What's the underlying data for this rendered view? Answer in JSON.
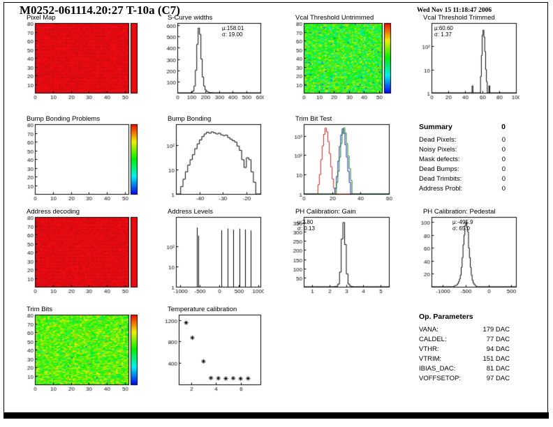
{
  "header": {
    "title": "M0252-061114.20:27 T-10a (C7)",
    "date": "Wed Nov 15 11:18:47 2006"
  },
  "summary": {
    "heading": "Summary",
    "total": "0",
    "items": [
      {
        "label": "Dead Pixels:",
        "value": "0"
      },
      {
        "label": "Noisy Pixels:",
        "value": "0"
      },
      {
        "label": "Mask defects:",
        "value": "0"
      },
      {
        "label": "Dead Bumps:",
        "value": "0"
      },
      {
        "label": "Dead Trimbits:",
        "value": "0"
      },
      {
        "label": "Address Probl:",
        "value": "0"
      }
    ]
  },
  "op_parameters": {
    "heading": "Op. Parameters",
    "items": [
      {
        "label": "VANA:",
        "value": "179 DAC"
      },
      {
        "label": "CALDEL:",
        "value": "77 DAC"
      },
      {
        "label": "VTHR:",
        "value": "94 DAC"
      },
      {
        "label": "VTRIM:",
        "value": "151 DAC"
      },
      {
        "label": "IBIAS_DAC:",
        "value": "81 DAC"
      },
      {
        "label": "VOFFSETOP:",
        "value": "97 DAC"
      }
    ]
  },
  "chart_data": [
    {
      "id": "pixel_map",
      "type": "heatmap",
      "title": "Pixel Map",
      "xlim": [
        0,
        52
      ],
      "xticks": [
        0,
        10,
        20,
        30,
        40,
        50
      ],
      "ylim": [
        0,
        80
      ],
      "yticks": [
        10,
        20,
        30,
        40,
        50,
        60,
        70,
        80
      ],
      "heat": {
        "kind": "red",
        "seed": 3
      },
      "colorbar": "red"
    },
    {
      "id": "scurve_widths",
      "type": "hist",
      "title": "S-Curve widths",
      "xlim": [
        0,
        600
      ],
      "xticks": [
        0,
        100,
        200,
        300,
        400,
        500,
        600
      ],
      "ylim": [
        0,
        620
      ],
      "yticks": [
        100,
        200,
        300,
        400,
        500,
        600
      ],
      "hist": {
        "start": 100,
        "binw": 10,
        "color": "#000000",
        "counts": [
          5,
          15,
          60,
          200,
          430,
          575,
          520,
          300,
          140,
          60,
          25,
          12,
          6,
          3,
          2,
          1
        ]
      },
      "stats": {
        "mu": "μ:158.01",
        "sigma": "σ: 19.00"
      }
    },
    {
      "id": "vcal_untrimmed",
      "type": "heatmap",
      "title": "Vcal Threshold Untrimmed",
      "xlim": [
        0,
        52
      ],
      "xticks": [
        0,
        10,
        20,
        30,
        40,
        50
      ],
      "ylim": [
        0,
        80
      ],
      "yticks": [
        10,
        20,
        30,
        40,
        50,
        60,
        70,
        80
      ],
      "heat": {
        "kind": "noise",
        "seed": 7,
        "mean": 0.52,
        "sd": 0.13,
        "outlier": 0.006,
        "outlier_v": 0.08
      },
      "colorbar": "rainbow"
    },
    {
      "id": "vcal_trimmed",
      "type": "hist",
      "title": "Vcal Threshold Trimmed",
      "ylog": true,
      "xlim": [
        0,
        100
      ],
      "xticks": [
        0,
        20,
        40,
        60,
        80,
        100
      ],
      "ylim": [
        1,
        1000
      ],
      "yticks": [
        1,
        10,
        100
      ],
      "ylabels": [
        "1",
        "10",
        "10²"
      ],
      "hist": {
        "start": 48,
        "binw": 1,
        "color": "#000000",
        "counts": [
          2,
          0,
          1,
          0,
          0,
          0,
          0,
          0,
          0,
          0,
          5,
          40,
          300,
          500,
          250,
          60,
          10,
          3,
          0,
          0,
          2,
          0,
          1
        ]
      },
      "stats": {
        "mu": "μ:60.60",
        "sigma": "σ: 1.37"
      }
    },
    {
      "id": "bump_problems",
      "type": "empty",
      "title": "Bump Bonding Problems",
      "xlim": [
        0,
        52
      ],
      "xticks": [
        0,
        10,
        20,
        30,
        40,
        50
      ],
      "ylim": [
        0,
        80
      ],
      "yticks": [
        10,
        20,
        30,
        40,
        50,
        60,
        70,
        80
      ],
      "colorbar": "rainbow"
    },
    {
      "id": "bump_bonding",
      "type": "hist",
      "title": "Bump Bonding",
      "ylog": true,
      "xlim": [
        -50,
        -14
      ],
      "xticks": [
        -40,
        -30,
        -20
      ],
      "ylim": [
        1,
        700
      ],
      "yticks": [
        1,
        10,
        100
      ],
      "ylabels": [
        "1",
        "10",
        "10²"
      ],
      "hist": {
        "start": -48,
        "binw": 1,
        "color": "#000000",
        "counts": [
          2,
          4,
          8,
          15,
          25,
          40,
          70,
          110,
          160,
          220,
          280,
          330,
          300,
          340,
          310,
          280,
          300,
          260,
          240,
          250,
          200,
          170,
          150,
          130,
          90,
          60,
          25,
          12,
          30,
          25,
          8,
          3,
          1
        ]
      }
    },
    {
      "id": "trimbit_test",
      "type": "multihist",
      "title": "Trim Bit Test",
      "ylog": true,
      "xlim": [
        0,
        60
      ],
      "xticks": [
        0,
        20,
        40,
        60
      ],
      "ylim": [
        1,
        4000
      ],
      "yticks": [
        1,
        10,
        100,
        1000
      ],
      "ylabels": [
        "1",
        "10",
        "10²",
        "10³"
      ],
      "series": [
        {
          "color": "#cc2222",
          "start": 9,
          "binw": 1,
          "counts": [
            1,
            3,
            10,
            60,
            300,
            1200,
            2500,
            1600,
            500,
            120,
            25,
            6,
            2
          ]
        },
        {
          "color": "#2222cc",
          "start": 21,
          "binw": 1,
          "counts": [
            1,
            2,
            8,
            50,
            280,
            1100,
            2300,
            1300,
            350,
            80,
            15,
            4,
            1
          ]
        },
        {
          "color": "#118811",
          "start": 22,
          "binw": 1,
          "counts": [
            1,
            4,
            15,
            80,
            400,
            1500,
            2600,
            1400,
            400,
            90,
            20,
            5,
            1
          ]
        }
      ]
    },
    {
      "id": "address_decoding",
      "type": "heatmap",
      "title": "Address decoding",
      "xlim": [
        0,
        52
      ],
      "xticks": [
        0,
        10,
        20,
        30,
        40,
        50
      ],
      "ylim": [
        0,
        80
      ],
      "yticks": [
        10,
        20,
        30,
        40,
        50,
        60,
        70,
        80
      ],
      "heat": {
        "kind": "red",
        "seed": 5
      },
      "colorbar": "red"
    },
    {
      "id": "address_levels",
      "type": "spikes",
      "title": "Address Levels",
      "ylog": true,
      "xlim": [
        -1100,
        1050
      ],
      "xticks": [
        -1000,
        -500,
        0,
        500,
        1000
      ],
      "ylim": [
        1,
        3000
      ],
      "yticks": [
        1,
        10,
        100
      ],
      "ylabels": [
        "1",
        "10",
        "10²"
      ],
      "spikes": [
        [
          -560,
          900
        ],
        [
          -540,
          350
        ],
        [
          60,
          650
        ],
        [
          210,
          800
        ],
        [
          360,
          700
        ],
        [
          510,
          780
        ],
        [
          660,
          720
        ],
        [
          810,
          640
        ]
      ]
    },
    {
      "id": "ph_gain",
      "type": "hist",
      "title": "PH Calibration: Gain",
      "xlim": [
        0.5,
        5.5
      ],
      "xticks": [
        1,
        2,
        3,
        4,
        5
      ],
      "ylim": [
        0,
        380
      ],
      "yticks": [
        50,
        100,
        150,
        200,
        250,
        300,
        350
      ],
      "hist": {
        "start": 2.3,
        "binw": 0.1,
        "color": "#000000",
        "counts": [
          1,
          3,
          15,
          80,
          260,
          350,
          230,
          70,
          15,
          4,
          1
        ]
      },
      "stats": {
        "mu": "μ:2.80",
        "sigma": "σ: 0.13"
      }
    },
    {
      "id": "ph_pedestal",
      "type": "hist",
      "title": "PH Calibration: Pedestal",
      "xlim": [
        -1250,
        600
      ],
      "xticks": [
        -1000,
        -500,
        0,
        500
      ],
      "ylim": [
        0,
        108
      ],
      "yticks": [
        20,
        40,
        60,
        80,
        100
      ],
      "hist": {
        "start": -760,
        "binw": 20,
        "color": "#000000",
        "counts": [
          1,
          2,
          2,
          3,
          5,
          8,
          12,
          18,
          30,
          45,
          65,
          80,
          95,
          100,
          92,
          85,
          60,
          45,
          30,
          18,
          10,
          6,
          4,
          2,
          1
        ]
      },
      "stats": {
        "mu": "μ:-495.9",
        "sigma": "σ: 65.0"
      }
    },
    {
      "id": "trim_bits",
      "type": "heatmap",
      "title": "Trim Bits",
      "xlim": [
        0,
        52
      ],
      "xticks": [
        0,
        10,
        20,
        30,
        40,
        50
      ],
      "ylim": [
        0,
        80
      ],
      "yticks": [
        10,
        20,
        30,
        40,
        50,
        60,
        70,
        80
      ],
      "heat": {
        "kind": "noise",
        "seed": 13,
        "mean": 0.58,
        "sd": 0.1,
        "outlier": 0.004,
        "outlier_v": 0.12
      },
      "colorbar": "rainbow"
    },
    {
      "id": "temperature",
      "type": "scatter",
      "title": "Temperature calibration",
      "xlim": [
        1,
        7.6
      ],
      "xticks": [
        2,
        4,
        6
      ],
      "ylim": [
        0,
        1300
      ],
      "yticks": [
        400,
        800,
        1200
      ],
      "marker": "star",
      "points": [
        [
          1.6,
          1150
        ],
        [
          2.1,
          870
        ],
        [
          3.0,
          430
        ],
        [
          3.6,
          120
        ],
        [
          4.2,
          115
        ],
        [
          4.8,
          110
        ],
        [
          5.4,
          115
        ],
        [
          6.0,
          108
        ],
        [
          6.6,
          112
        ]
      ]
    }
  ]
}
